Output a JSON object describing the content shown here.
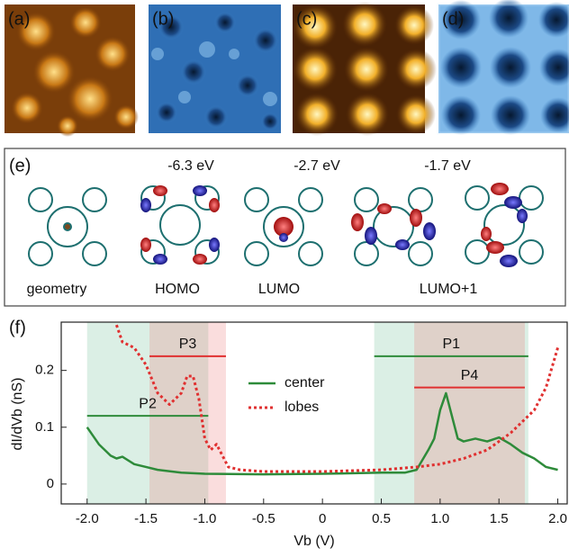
{
  "panels": {
    "labels": [
      "(a)",
      "(b)",
      "(c)",
      "(d)",
      "(e)",
      "(f)"
    ],
    "energies": [
      "-6.3 eV",
      "-2.7 eV",
      "-1.7 eV"
    ],
    "orbitals": [
      "geometry",
      "HOMO",
      "LUMO",
      "LUMO+1"
    ]
  },
  "chart_data": {
    "type": "line",
    "xlabel": "Vb (V)",
    "ylabel": "dI/dVb (nS)",
    "xlim": [
      -2.22,
      2.08
    ],
    "ylim": [
      -0.035,
      0.285
    ],
    "xticks": [
      {
        "value": -2,
        "label": "-2.0"
      },
      -1.5,
      {
        "value": -1,
        "label": "-1.0"
      },
      -0.5,
      0,
      0.5,
      {
        "value": 1,
        "label": "1.0"
      },
      1.5,
      {
        "value": 2,
        "label": "2.0"
      }
    ],
    "yticks": [
      0,
      0.1,
      0.2
    ],
    "legend": "upper center",
    "series": [
      {
        "name": "center",
        "color": "#2e8b3a",
        "dash": false,
        "x": [
          -2.0,
          -1.9,
          -1.8,
          -1.75,
          -1.7,
          -1.6,
          -1.5,
          -1.4,
          -1.2,
          -1.0,
          -0.5,
          0,
          0.5,
          0.7,
          0.8,
          0.9,
          0.95,
          1.0,
          1.05,
          1.1,
          1.15,
          1.2,
          1.3,
          1.4,
          1.5,
          1.6,
          1.7,
          1.8,
          1.9,
          2.0
        ],
        "values": [
          0.1,
          0.07,
          0.05,
          0.045,
          0.048,
          0.035,
          0.03,
          0.025,
          0.02,
          0.018,
          0.017,
          0.018,
          0.02,
          0.02,
          0.025,
          0.06,
          0.08,
          0.13,
          0.16,
          0.12,
          0.08,
          0.075,
          0.08,
          0.075,
          0.082,
          0.07,
          0.055,
          0.045,
          0.03,
          0.025
        ]
      },
      {
        "name": "lobes",
        "color": "#e03030",
        "dash": true,
        "x": [
          -1.75,
          -1.7,
          -1.6,
          -1.5,
          -1.4,
          -1.3,
          -1.2,
          -1.15,
          -1.1,
          -1.05,
          -1.0,
          -0.95,
          -0.9,
          -0.85,
          -0.8,
          -0.7,
          -0.5,
          0,
          0.5,
          0.8,
          1.0,
          1.2,
          1.4,
          1.6,
          1.8,
          1.9,
          2.0
        ],
        "values": [
          0.28,
          0.25,
          0.24,
          0.21,
          0.16,
          0.14,
          0.16,
          0.19,
          0.19,
          0.15,
          0.08,
          0.06,
          0.07,
          0.05,
          0.03,
          0.025,
          0.022,
          0.022,
          0.025,
          0.03,
          0.035,
          0.045,
          0.06,
          0.09,
          0.13,
          0.17,
          0.24
        ]
      }
    ],
    "peaks": [
      {
        "name": "P2",
        "color": "#2e8b3a",
        "range": [
          -2.0,
          -0.97
        ],
        "level": 0.12
      },
      {
        "name": "P3",
        "color": "#e03030",
        "range": [
          -1.47,
          -0.82
        ],
        "level": 0.225
      },
      {
        "name": "P1",
        "color": "#2e8b3a",
        "range": [
          0.44,
          1.75
        ],
        "level": 0.225
      },
      {
        "name": "P4",
        "color": "#e03030",
        "range": [
          0.78,
          1.72
        ],
        "level": 0.17
      }
    ]
  }
}
